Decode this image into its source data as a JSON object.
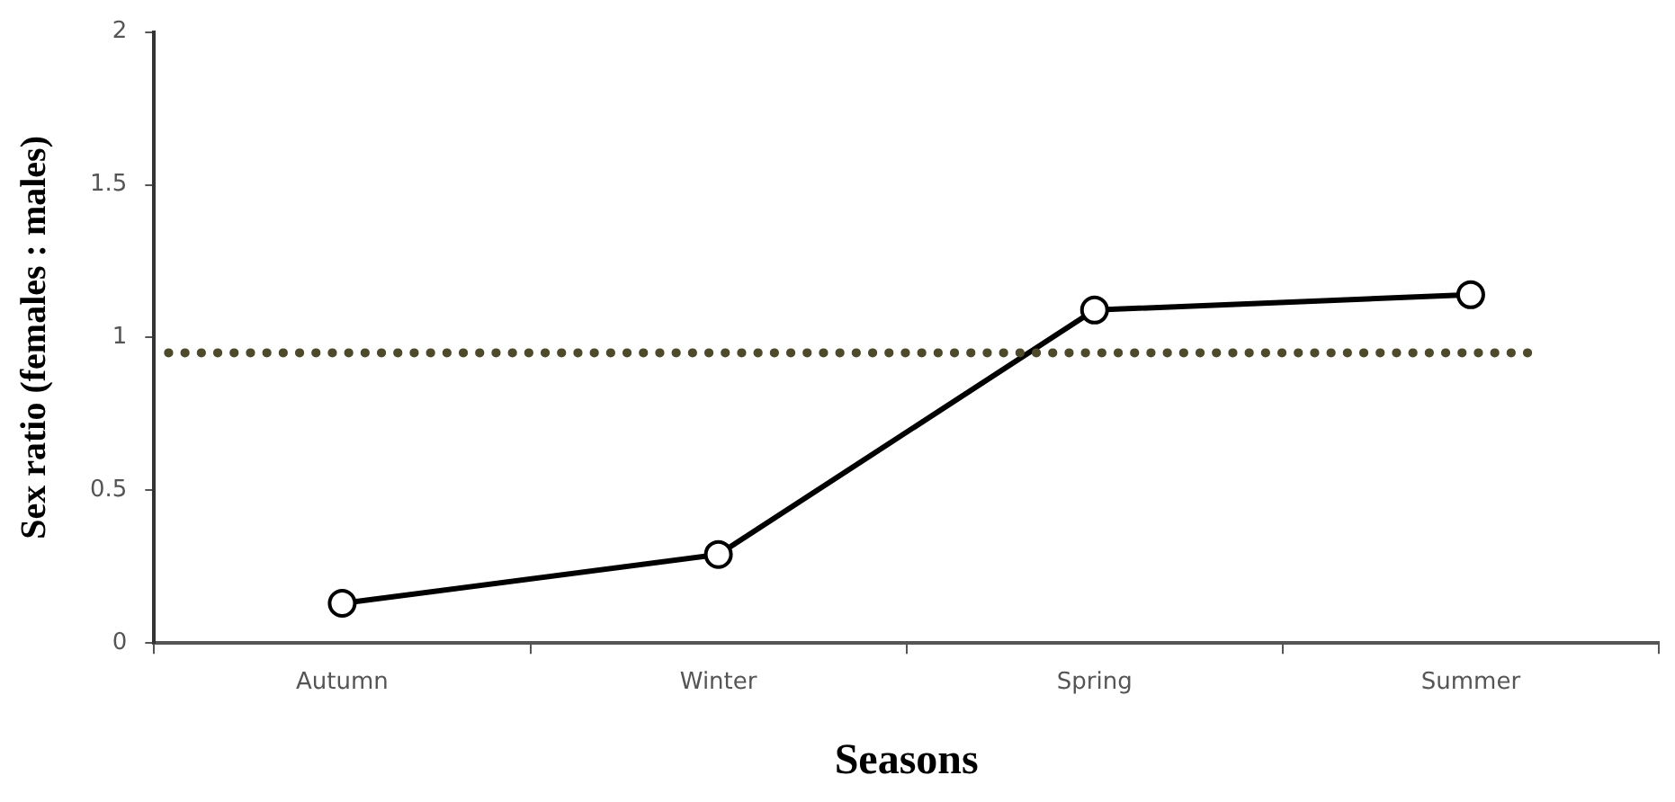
{
  "chart_data": {
    "type": "line",
    "xlabel": "Seasons",
    "ylabel": "Sex ratio (females : males)",
    "categories": [
      "Autumn",
      "Winter",
      "Spring",
      "Summer"
    ],
    "series": [
      {
        "color": "#000000",
        "values": [
          0.13,
          0.29,
          1.09,
          1.14
        ]
      }
    ],
    "ylim": [
      0,
      2
    ],
    "yticks": [
      0,
      0.5,
      1,
      1.5,
      2
    ],
    "grid": false,
    "legend": false,
    "marker": "circle",
    "line_style": "solid",
    "ref_lines": [
      {
        "axis": "y",
        "value": 0.95,
        "color": "#4d4a2b",
        "line_style": "dotted"
      }
    ]
  }
}
